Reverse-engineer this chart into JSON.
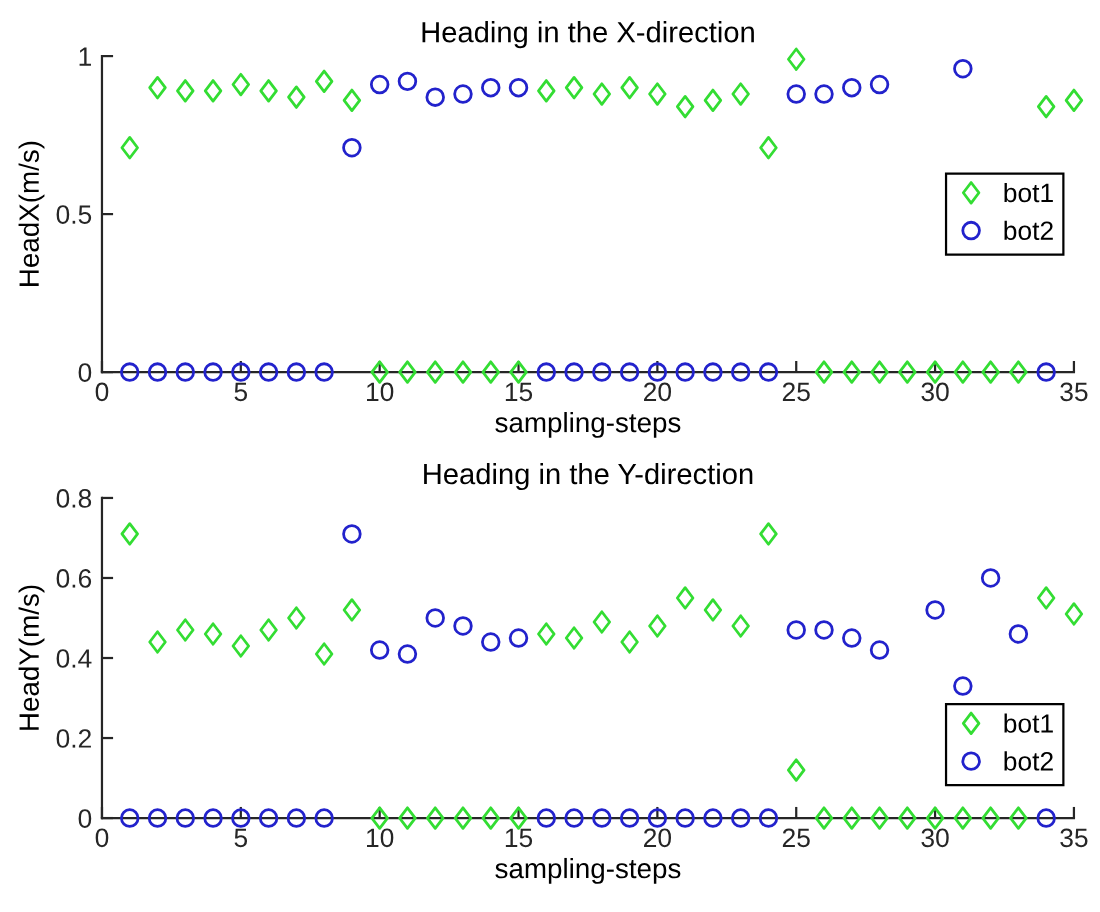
{
  "chart_data": [
    {
      "type": "scatter",
      "title": "Heading in the X-direction",
      "xlabel": "sampling-steps",
      "ylabel": "HeadX(m/s)",
      "x": [
        1,
        2,
        3,
        4,
        5,
        6,
        7,
        8,
        9,
        10,
        11,
        12,
        13,
        14,
        15,
        16,
        17,
        18,
        19,
        20,
        21,
        22,
        23,
        24,
        25,
        26,
        27,
        28,
        29,
        30,
        31,
        32,
        33,
        34,
        35
      ],
      "series": [
        {
          "name": "bot1",
          "color": "#33dd33",
          "marker": "diamond",
          "values": [
            0.71,
            0.9,
            0.89,
            0.89,
            0.91,
            0.89,
            0.87,
            0.92,
            0.86,
            0,
            0,
            0,
            0,
            0,
            0,
            0.89,
            0.9,
            0.88,
            0.9,
            0.88,
            0.84,
            0.86,
            0.88,
            0.71,
            0.99,
            0,
            0,
            0,
            0,
            0,
            0,
            0,
            0,
            0.84,
            0.86
          ]
        },
        {
          "name": "bot2",
          "color": "#2222cc",
          "marker": "circle",
          "values": [
            0,
            0,
            0,
            0,
            0,
            0,
            0,
            0,
            0.71,
            0.91,
            0.92,
            0.87,
            0.88,
            0.9,
            0.9,
            0,
            0,
            0,
            0,
            0,
            0,
            0,
            0,
            0,
            0.88,
            0.88,
            0.9,
            0.91,
            null,
            null,
            0.96,
            null,
            null,
            0,
            null
          ]
        }
      ],
      "xlim": [
        0,
        35
      ],
      "xticks": [
        0,
        5,
        10,
        15,
        20,
        25,
        30,
        35
      ],
      "ylim": [
        0,
        1
      ],
      "yticks": [
        0,
        0.5,
        1
      ],
      "legend": "center right"
    },
    {
      "type": "scatter",
      "title": "Heading in the Y-direction",
      "xlabel": "sampling-steps",
      "ylabel": "HeadY(m/s)",
      "x": [
        1,
        2,
        3,
        4,
        5,
        6,
        7,
        8,
        9,
        10,
        11,
        12,
        13,
        14,
        15,
        16,
        17,
        18,
        19,
        20,
        21,
        22,
        23,
        24,
        25,
        26,
        27,
        28,
        29,
        30,
        31,
        32,
        33,
        34,
        35
      ],
      "series": [
        {
          "name": "bot1",
          "color": "#33dd33",
          "marker": "diamond",
          "values": [
            0.71,
            0.44,
            0.47,
            0.46,
            0.43,
            0.47,
            0.5,
            0.41,
            0.52,
            0,
            0,
            0,
            0,
            0,
            0,
            0.46,
            0.45,
            0.49,
            0.44,
            0.48,
            0.55,
            0.52,
            0.48,
            0.71,
            0.12,
            0,
            0,
            0,
            0,
            0,
            0,
            0,
            0,
            0.55,
            0.51
          ]
        },
        {
          "name": "bot2",
          "color": "#2222cc",
          "marker": "circle",
          "values": [
            0,
            0,
            0,
            0,
            0,
            0,
            0,
            0,
            0.71,
            0.42,
            0.41,
            0.5,
            0.48,
            0.44,
            0.45,
            0,
            0,
            0,
            0,
            0,
            0,
            0,
            0,
            0,
            0.47,
            0.47,
            0.45,
            0.42,
            null,
            0.52,
            0.33,
            0.6,
            0.46,
            0,
            null
          ]
        }
      ],
      "xlim": [
        0,
        35
      ],
      "xticks": [
        0,
        5,
        10,
        15,
        20,
        25,
        30,
        35
      ],
      "ylim": [
        0,
        0.8
      ],
      "yticks": [
        0,
        0.2,
        0.4,
        0.6,
        0.8
      ],
      "legend": "lower right"
    }
  ]
}
